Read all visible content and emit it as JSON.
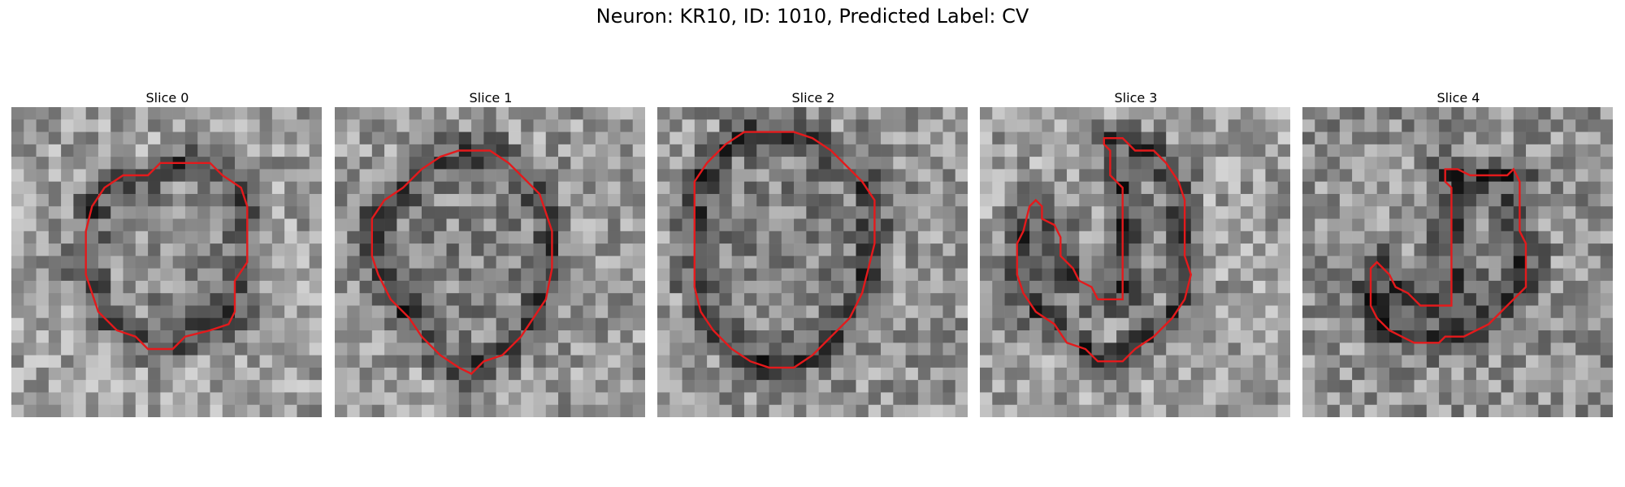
{
  "figure": {
    "suptitle": "Neuron: KR10, ID: 1010, Predicted Label: CV"
  },
  "contour_color": "#e41a1c",
  "panels": [
    {
      "title": "Slice 0",
      "seed": 11,
      "shade": 0.0,
      "contour": [
        [
          12.0,
          4.5
        ],
        [
          16.0,
          4.5
        ],
        [
          17.0,
          5.5
        ],
        [
          18.5,
          6.5
        ],
        [
          19.0,
          8.0
        ],
        [
          19.0,
          12.5
        ],
        [
          18.0,
          14.0
        ],
        [
          18.0,
          16.5
        ],
        [
          17.5,
          17.5
        ],
        [
          16.0,
          18.0
        ],
        [
          14.0,
          18.5
        ],
        [
          13.0,
          19.5
        ],
        [
          11.0,
          19.5
        ],
        [
          10.0,
          18.5
        ],
        [
          8.5,
          18.0
        ],
        [
          7.0,
          16.5
        ],
        [
          6.5,
          15.0
        ],
        [
          6.0,
          13.5
        ],
        [
          6.0,
          10.0
        ],
        [
          6.5,
          8.0
        ],
        [
          7.5,
          6.5
        ],
        [
          9.0,
          5.5
        ],
        [
          11.0,
          5.5
        ]
      ]
    },
    {
      "title": "Slice 1",
      "seed": 23,
      "shade": 0.02,
      "contour": [
        [
          10.0,
          3.5
        ],
        [
          12.5,
          3.5
        ],
        [
          14.0,
          4.5
        ],
        [
          15.0,
          5.5
        ],
        [
          16.5,
          7.0
        ],
        [
          17.0,
          8.5
        ],
        [
          17.5,
          10.0
        ],
        [
          17.5,
          13.0
        ],
        [
          17.0,
          15.5
        ],
        [
          16.0,
          17.0
        ],
        [
          15.0,
          18.5
        ],
        [
          13.5,
          20.0
        ],
        [
          12.0,
          20.5
        ],
        [
          11.0,
          21.5
        ],
        [
          10.0,
          21.0
        ],
        [
          8.5,
          20.0
        ],
        [
          7.0,
          18.5
        ],
        [
          6.0,
          17.0
        ],
        [
          4.5,
          15.5
        ],
        [
          3.5,
          13.5
        ],
        [
          3.0,
          12.0
        ],
        [
          3.0,
          9.0
        ],
        [
          4.0,
          7.5
        ],
        [
          5.5,
          6.5
        ],
        [
          7.0,
          5.0
        ],
        [
          8.5,
          4.0
        ]
      ]
    },
    {
      "title": "Slice 2",
      "seed": 37,
      "shade": 0.04,
      "contour": [
        [
          7.0,
          2.0
        ],
        [
          11.0,
          2.0
        ],
        [
          12.5,
          2.5
        ],
        [
          14.0,
          3.5
        ],
        [
          15.0,
          4.5
        ],
        [
          16.5,
          6.0
        ],
        [
          17.5,
          7.5
        ],
        [
          17.5,
          11.0
        ],
        [
          17.0,
          13.0
        ],
        [
          16.5,
          15.0
        ],
        [
          15.5,
          17.0
        ],
        [
          14.0,
          18.5
        ],
        [
          12.5,
          20.0
        ],
        [
          11.0,
          21.0
        ],
        [
          9.0,
          21.0
        ],
        [
          7.5,
          20.5
        ],
        [
          6.0,
          19.5
        ],
        [
          4.5,
          18.0
        ],
        [
          3.5,
          16.5
        ],
        [
          3.0,
          14.5
        ],
        [
          3.0,
          6.0
        ],
        [
          4.0,
          4.5
        ],
        [
          5.5,
          3.0
        ]
      ]
    },
    {
      "title": "Slice 3",
      "seed": 51,
      "shade": 0.0,
      "contour": [
        [
          10.0,
          2.5
        ],
        [
          11.5,
          2.5
        ],
        [
          12.5,
          3.5
        ],
        [
          14.0,
          3.5
        ],
        [
          15.0,
          4.5
        ],
        [
          16.0,
          6.0
        ],
        [
          16.5,
          7.5
        ],
        [
          16.5,
          12.0
        ],
        [
          17.0,
          13.5
        ],
        [
          16.5,
          15.5
        ],
        [
          15.5,
          17.0
        ],
        [
          14.0,
          18.5
        ],
        [
          12.5,
          19.5
        ],
        [
          11.5,
          20.5
        ],
        [
          9.5,
          20.5
        ],
        [
          8.5,
          19.5
        ],
        [
          7.0,
          19.0
        ],
        [
          6.0,
          17.5
        ],
        [
          4.5,
          16.5
        ],
        [
          3.5,
          15.0
        ],
        [
          3.0,
          13.5
        ],
        [
          3.0,
          11.0
        ],
        [
          3.5,
          10.0
        ],
        [
          4.0,
          8.0
        ],
        [
          4.5,
          7.5
        ],
        [
          5.0,
          8.0
        ],
        [
          5.0,
          9.0
        ],
        [
          6.0,
          9.5
        ],
        [
          6.5,
          10.5
        ],
        [
          6.5,
          12.0
        ],
        [
          7.5,
          13.0
        ],
        [
          8.0,
          14.0
        ],
        [
          9.0,
          14.5
        ],
        [
          9.5,
          15.5
        ],
        [
          11.5,
          15.5
        ],
        [
          11.5,
          6.5
        ],
        [
          11.0,
          6.0
        ],
        [
          10.5,
          5.5
        ],
        [
          10.5,
          3.5
        ],
        [
          10.0,
          3.0
        ]
      ]
    },
    {
      "title": "Slice 4",
      "seed": 67,
      "shade": 0.05,
      "contour": [
        [
          11.5,
          5.0
        ],
        [
          12.5,
          5.0
        ],
        [
          13.5,
          5.5
        ],
        [
          16.5,
          5.5
        ],
        [
          17.0,
          5.0
        ],
        [
          17.5,
          6.0
        ],
        [
          17.5,
          10.0
        ],
        [
          18.0,
          11.0
        ],
        [
          18.0,
          14.5
        ],
        [
          17.0,
          15.5
        ],
        [
          16.0,
          16.5
        ],
        [
          15.0,
          17.5
        ],
        [
          14.0,
          18.0
        ],
        [
          13.0,
          18.5
        ],
        [
          11.5,
          18.5
        ],
        [
          11.0,
          19.0
        ],
        [
          9.0,
          19.0
        ],
        [
          8.0,
          18.5
        ],
        [
          7.0,
          18.0
        ],
        [
          6.0,
          17.0
        ],
        [
          5.5,
          16.0
        ],
        [
          5.5,
          13.0
        ],
        [
          6.0,
          12.5
        ],
        [
          6.5,
          13.0
        ],
        [
          7.0,
          13.5
        ],
        [
          7.5,
          14.5
        ],
        [
          8.5,
          15.0
        ],
        [
          9.0,
          15.5
        ],
        [
          9.5,
          16.0
        ],
        [
          12.0,
          16.0
        ],
        [
          12.0,
          6.5
        ],
        [
          11.5,
          6.0
        ]
      ]
    }
  ]
}
